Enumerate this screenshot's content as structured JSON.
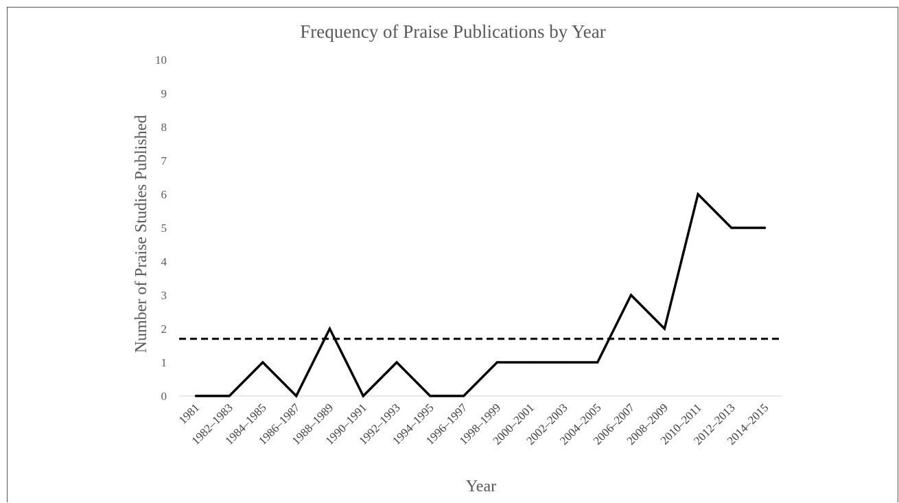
{
  "chart_data": {
    "type": "line",
    "title": "Frequency of Praise Publications by Year",
    "xlabel": "Year",
    "ylabel": "Number of Praise Studies Published",
    "categories": [
      "1981",
      "1982–1983",
      "1984–1985",
      "1986–1987",
      "1988–1989",
      "1990–1991",
      "1992–1993",
      "1994–1995",
      "1996–1997",
      "1998–1999",
      "2000–2001",
      "2002–2003",
      "2004–2005",
      "2006–2007",
      "2008–2009",
      "2010–2011",
      "2012–2013",
      "2014–2015"
    ],
    "series": [
      {
        "values": [
          0,
          0,
          1,
          0,
          2,
          0,
          1,
          0,
          0,
          1,
          1,
          1,
          1,
          3,
          2,
          6,
          5,
          5
        ],
        "color": "#000000",
        "style": "solid"
      }
    ],
    "reference_line": {
      "value": 1.7,
      "style": "dashed",
      "color": "#000000"
    },
    "ylim": [
      0,
      10
    ],
    "yticks": [
      0,
      1,
      2,
      3,
      4,
      5,
      6,
      7,
      8,
      9,
      10
    ],
    "grid": false,
    "legend": "none"
  }
}
